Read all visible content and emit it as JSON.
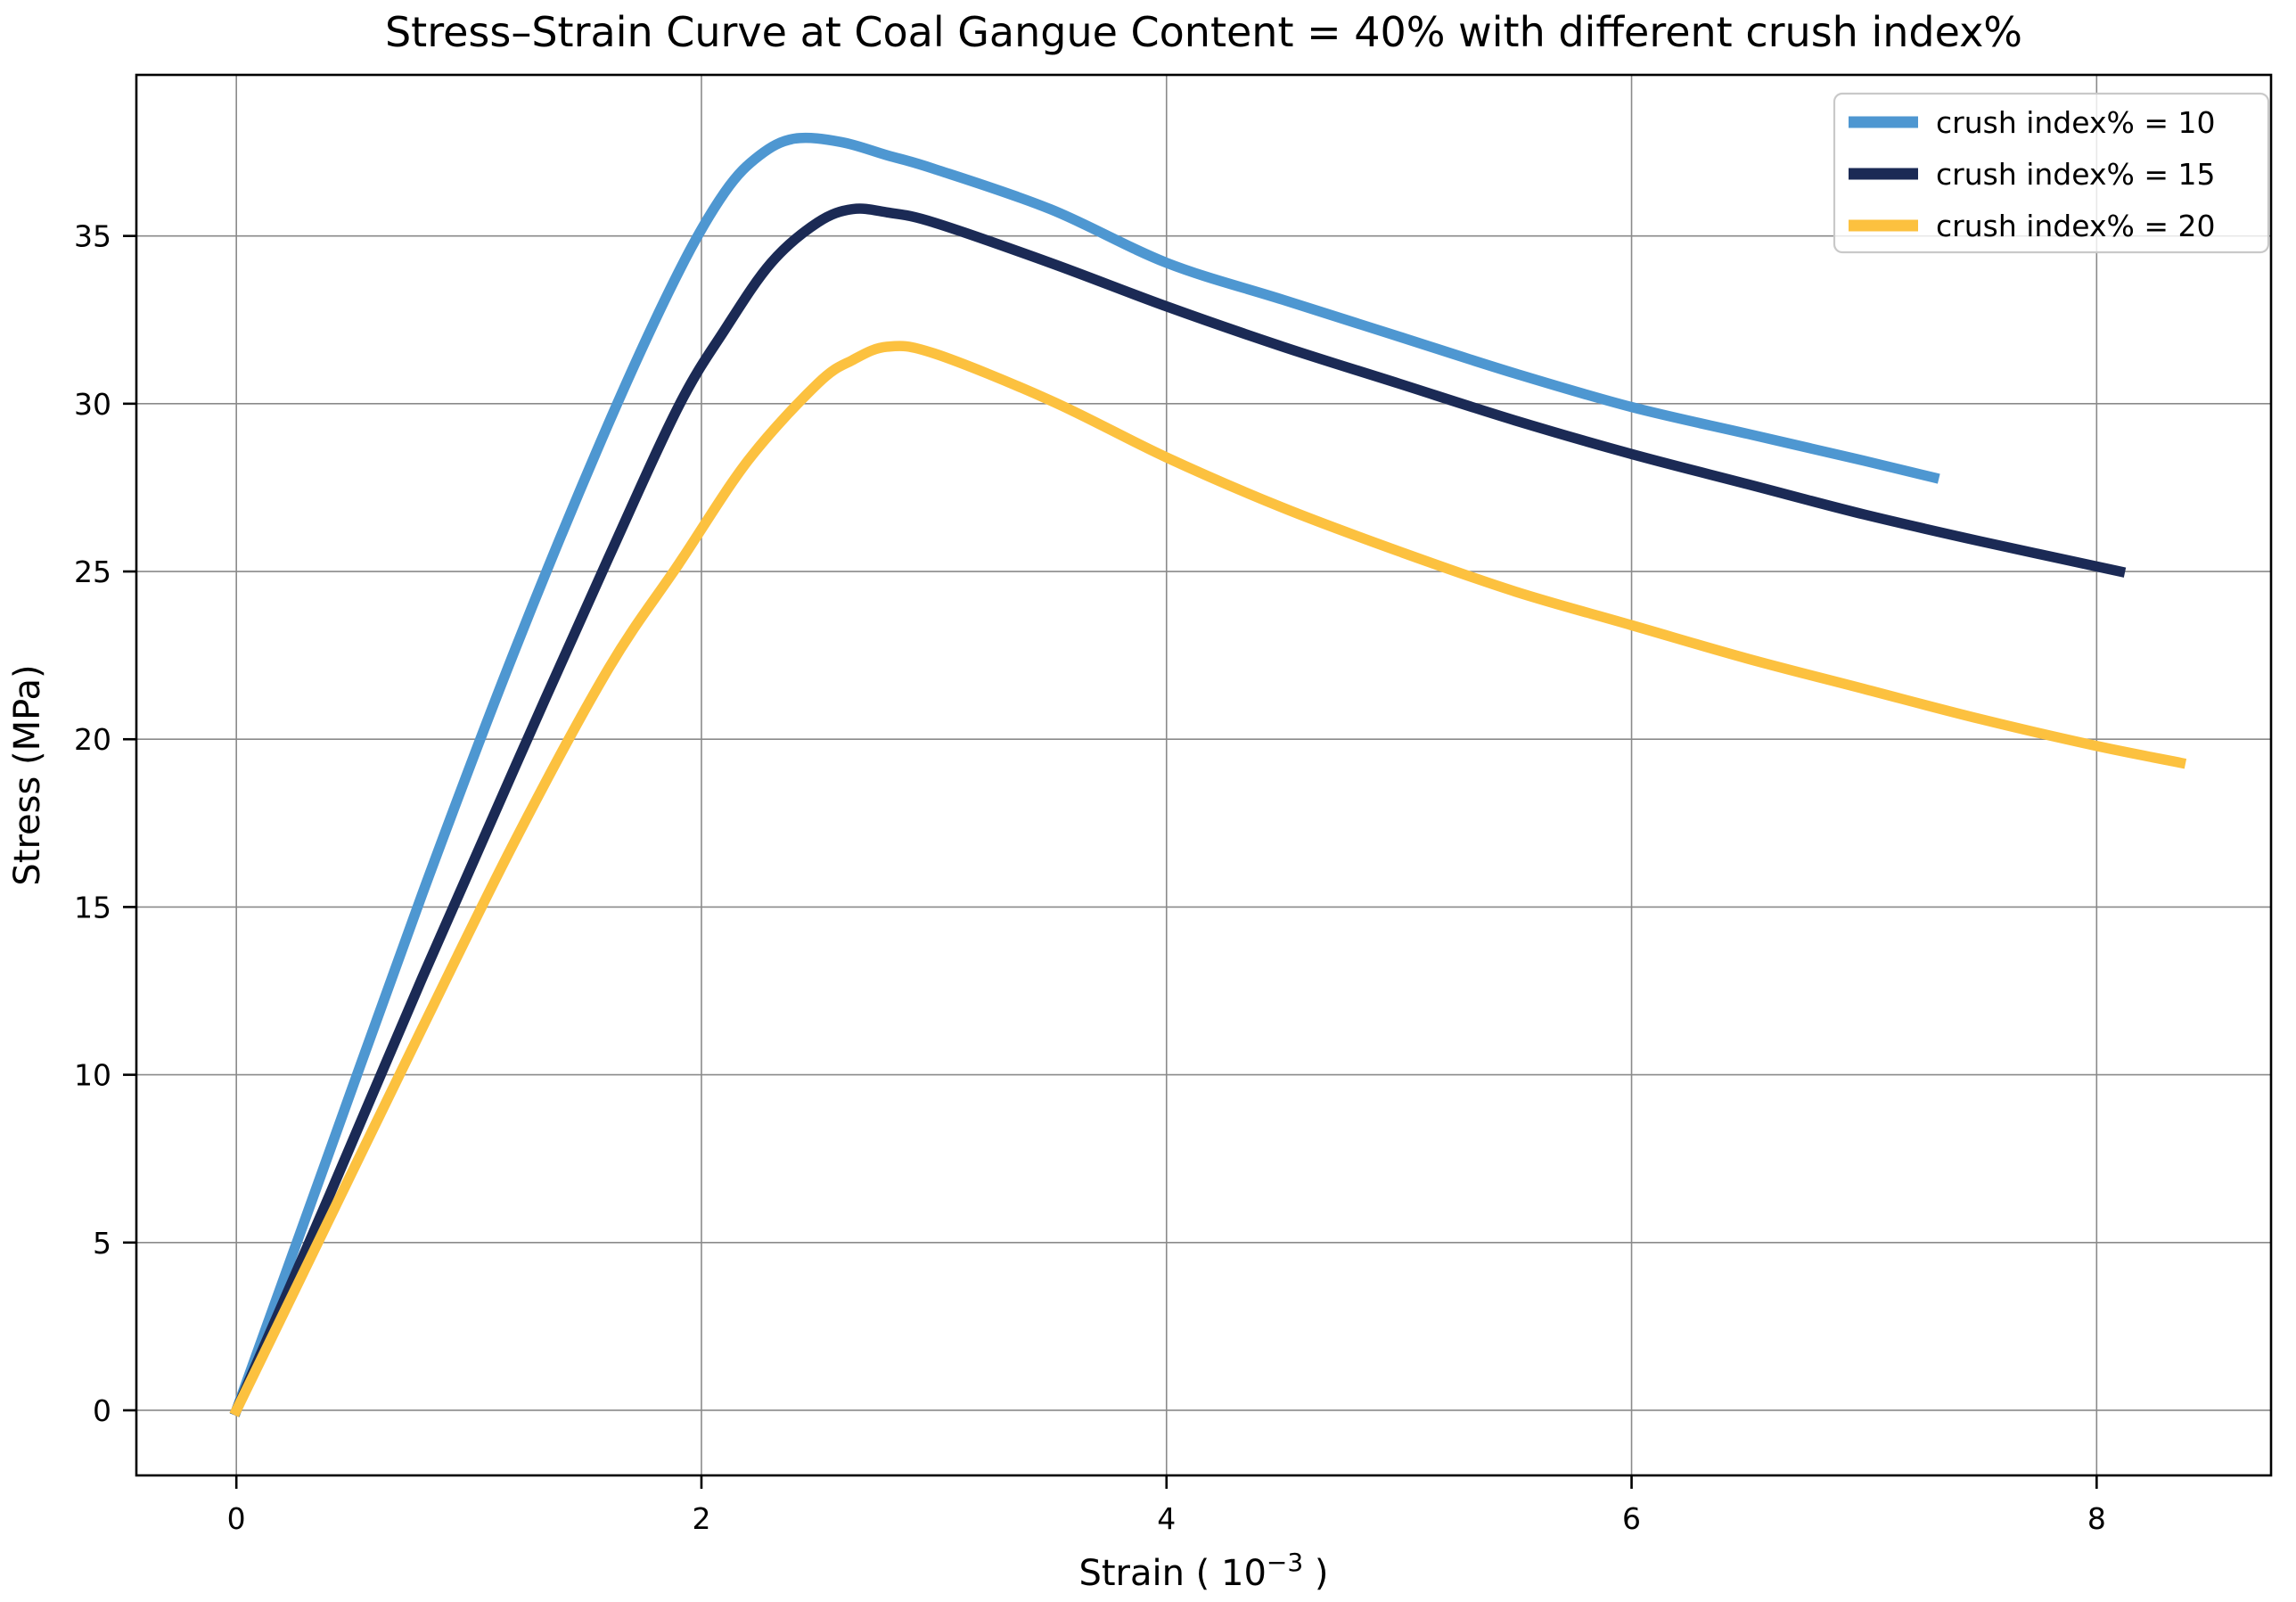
{
  "chart_data": {
    "type": "line",
    "title": "Stress–Strain Curve at Coal Gangue Content = 40% with different crush index%",
    "xlabel": "Strain ( 10⁻³ )",
    "xlabel_parts": {
      "base": "Strain ( 10",
      "superscript": "−3",
      "suffix": " )"
    },
    "ylabel": "Stress (MPa)",
    "xlim": [
      -0.43,
      8.75
    ],
    "ylim": [
      -1.94,
      39.8
    ],
    "xticks": [
      0,
      2,
      4,
      6,
      8
    ],
    "yticks": [
      0,
      5,
      10,
      15,
      20,
      25,
      30,
      35
    ],
    "grid": true,
    "legend_position": "upper right",
    "series": [
      {
        "name": "crush-index-10",
        "label": "crush index% = 10",
        "color": "#4E97D1",
        "peak": {
          "x": 2.4,
          "y": 37.9
        },
        "end": {
          "x": 7.3,
          "y": 27.8
        },
        "points": [
          [
            0,
            0
          ],
          [
            0.4,
            7.7
          ],
          [
            0.8,
            15.4
          ],
          [
            1.2,
            22.7
          ],
          [
            1.6,
            29.4
          ],
          [
            1.9,
            33.9
          ],
          [
            2.1,
            36.3
          ],
          [
            2.25,
            37.4
          ],
          [
            2.4,
            37.9
          ],
          [
            2.6,
            37.8
          ],
          [
            2.8,
            37.4
          ],
          [
            3.0,
            37.0
          ],
          [
            3.5,
            35.8
          ],
          [
            4.0,
            34.2
          ],
          [
            4.5,
            33.1
          ],
          [
            5.0,
            32.0
          ],
          [
            5.5,
            30.9
          ],
          [
            6.0,
            29.9
          ],
          [
            6.5,
            29.1
          ],
          [
            7.0,
            28.3
          ],
          [
            7.3,
            27.8
          ]
        ]
      },
      {
        "name": "crush-index-15",
        "label": "crush index% = 15",
        "color": "#1B2A55",
        "peak": {
          "x": 2.65,
          "y": 35.8
        },
        "end": {
          "x": 8.1,
          "y": 25.0
        },
        "points": [
          [
            0,
            0
          ],
          [
            0.4,
            6.4
          ],
          [
            0.8,
            12.9
          ],
          [
            1.2,
            19.2
          ],
          [
            1.6,
            25.4
          ],
          [
            1.9,
            29.9
          ],
          [
            2.1,
            32.2
          ],
          [
            2.3,
            34.2
          ],
          [
            2.5,
            35.4
          ],
          [
            2.65,
            35.8
          ],
          [
            2.8,
            35.7
          ],
          [
            3.0,
            35.4
          ],
          [
            3.5,
            34.2
          ],
          [
            4.0,
            32.9
          ],
          [
            4.5,
            31.7
          ],
          [
            5.0,
            30.6
          ],
          [
            5.5,
            29.5
          ],
          [
            6.0,
            28.5
          ],
          [
            6.5,
            27.6
          ],
          [
            7.0,
            26.7
          ],
          [
            7.5,
            25.9
          ],
          [
            8.1,
            25.0
          ]
        ]
      },
      {
        "name": "crush-index-20",
        "label": "crush index% = 20",
        "color": "#FCC13F",
        "peak": {
          "x": 2.8,
          "y": 31.7
        },
        "end": {
          "x": 8.36,
          "y": 19.3
        },
        "points": [
          [
            0,
            0
          ],
          [
            0.4,
            5.7
          ],
          [
            0.8,
            11.4
          ],
          [
            1.2,
            17.0
          ],
          [
            1.6,
            22.1
          ],
          [
            1.9,
            25.2
          ],
          [
            2.2,
            28.3
          ],
          [
            2.5,
            30.6
          ],
          [
            2.65,
            31.3
          ],
          [
            2.8,
            31.7
          ],
          [
            3.0,
            31.5
          ],
          [
            3.5,
            30.1
          ],
          [
            4.0,
            28.4
          ],
          [
            4.5,
            26.9
          ],
          [
            5.0,
            25.6
          ],
          [
            5.5,
            24.4
          ],
          [
            6.0,
            23.4
          ],
          [
            6.5,
            22.4
          ],
          [
            7.0,
            21.5
          ],
          [
            7.5,
            20.6
          ],
          [
            8.0,
            19.8
          ],
          [
            8.36,
            19.3
          ]
        ]
      }
    ]
  },
  "style_colors": {
    "grid": "#8a8a8a",
    "spine": "#000000",
    "background": "#ffffff",
    "legend_border": "#c9c9c9",
    "legend_fill_alpha": "0.8"
  }
}
